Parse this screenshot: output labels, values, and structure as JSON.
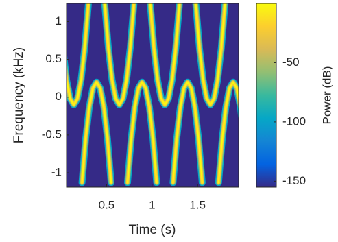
{
  "chart_data": {
    "type": "spectrogram",
    "x_label": "Time (s)",
    "y_label": "Frequency (kHz)",
    "colorbar_label": "Power (dB)",
    "xlim": [
      0.06,
      1.95
    ],
    "xticks": [
      0.5,
      1,
      1.5
    ],
    "ylim": [
      -1.19,
      1.24
    ],
    "yticks": [
      -1,
      -0.5,
      0,
      0.5,
      1
    ],
    "clim": [
      -155,
      0
    ],
    "cticks": [
      -150,
      -100,
      -50
    ],
    "colormap": [
      "#352a87",
      "#0363e1",
      "#1485d4",
      "#06a7c6",
      "#38b99e",
      "#92bf73",
      "#d9ba56",
      "#fcce2e",
      "#f9fb0e"
    ],
    "series": [
      {
        "x": [
          -0.02,
          0.02,
          0.06,
          0.1,
          0.14,
          0.18,
          0.22,
          0.26,
          0.3
        ],
        "values": [
          1.23,
          0.65,
          0.23,
          -0.02,
          -0.1,
          -0.02,
          0.23,
          0.65,
          1.23
        ]
      },
      {
        "x": [
          0.48,
          0.52,
          0.56,
          0.6,
          0.64,
          0.68,
          0.72,
          0.76,
          0.8
        ],
        "values": [
          1.23,
          0.65,
          0.23,
          -0.02,
          -0.1,
          -0.02,
          0.23,
          0.65,
          1.23
        ]
      },
      {
        "x": [
          0.98,
          1.02,
          1.06,
          1.1,
          1.14,
          1.18,
          1.22,
          1.26,
          1.3
        ],
        "values": [
          1.23,
          0.65,
          0.23,
          -0.02,
          -0.1,
          -0.02,
          0.23,
          0.65,
          1.23
        ]
      },
      {
        "x": [
          1.48,
          1.52,
          1.56,
          1.6,
          1.64,
          1.68,
          1.72,
          1.76,
          1.8
        ],
        "values": [
          1.23,
          0.65,
          0.23,
          -0.02,
          -0.1,
          -0.02,
          0.23,
          0.65,
          1.23
        ]
      },
      {
        "x": [
          0.23,
          0.27,
          0.31,
          0.35,
          0.39,
          0.43,
          0.47,
          0.51,
          0.55
        ],
        "values": [
          -1.13,
          -0.55,
          -0.13,
          0.12,
          0.2,
          0.12,
          -0.13,
          -0.55,
          -1.13
        ]
      },
      {
        "x": [
          0.73,
          0.77,
          0.81,
          0.85,
          0.89,
          0.93,
          0.97,
          1.01,
          1.05
        ],
        "values": [
          -1.13,
          -0.55,
          -0.13,
          0.12,
          0.2,
          0.12,
          -0.13,
          -0.55,
          -1.13
        ]
      },
      {
        "x": [
          1.23,
          1.27,
          1.31,
          1.35,
          1.39,
          1.43,
          1.47,
          1.51,
          1.55
        ],
        "values": [
          -1.13,
          -0.55,
          -0.13,
          0.12,
          0.2,
          0.12,
          -0.13,
          -0.55,
          -1.13
        ]
      },
      {
        "x": [
          1.73,
          1.77,
          1.81,
          1.85,
          1.89,
          1.93,
          1.97,
          2.01,
          2.05
        ],
        "values": [
          -1.13,
          -0.55,
          -0.13,
          0.12,
          0.2,
          0.12,
          -0.13,
          -0.55,
          -1.13
        ]
      }
    ]
  }
}
